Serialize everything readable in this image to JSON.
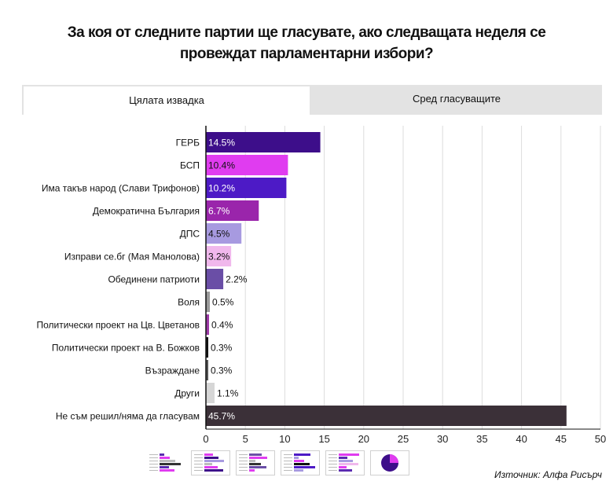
{
  "title": "За коя от следните партии ще гласувате, ако следващата неделя се провеждат парламентарни избори?",
  "tabs": [
    {
      "label": "Цялата извадка",
      "active": true
    },
    {
      "label": "Сред гласуващите",
      "active": false
    }
  ],
  "chart_data": {
    "type": "bar",
    "orientation": "horizontal",
    "categories": [
      "ГЕРБ",
      "БСП",
      "Има такъв народ (Слави Трифонов)",
      "Демократична България",
      "ДПС",
      "Изправи се.бг (Мая Манолова)",
      "Обединени патриоти",
      "Воля",
      "Политически проект на Цв. Цветанов",
      "Политически проект на В. Божков",
      "Възраждане",
      "Други",
      "Не съм решил/няма да гласувам"
    ],
    "values": [
      14.5,
      10.4,
      10.2,
      6.7,
      4.5,
      3.2,
      2.2,
      0.5,
      0.4,
      0.3,
      0.3,
      1.1,
      45.7
    ],
    "value_labels": [
      "14.5%",
      "10.4%",
      "10.2%",
      "6.7%",
      "4.5%",
      "3.2%",
      "2.2%",
      "0.5%",
      "0.4%",
      "0.3%",
      "0.3%",
      "1.1%",
      "45.7%"
    ],
    "colors": [
      "#3d0e8a",
      "#e03cf0",
      "#4d1ac6",
      "#9a25ab",
      "#a79ae0",
      "#f0b8ec",
      "#6a4ea6",
      "#9a9a9a",
      "#9c3aa6",
      "#111111",
      "#555555",
      "#d6d6d6",
      "#3b3038"
    ],
    "label_colors": [
      "#ffffff",
      "#111111",
      "#ffffff",
      "#ffffff",
      "#111111",
      "#111111",
      "#111111",
      "#111111",
      "#111111",
      "#111111",
      "#111111",
      "#111111",
      "#ffffff"
    ],
    "xlim": [
      0,
      50
    ],
    "xticks": [
      0,
      5,
      10,
      15,
      20,
      25,
      30,
      35,
      40,
      45,
      50
    ],
    "grid": true
  },
  "thumbnails": [
    {
      "name": "thumb-1",
      "colors": [
        "#5a2bb0",
        "#e03cf0",
        "#bbbbbb",
        "#333333"
      ]
    },
    {
      "name": "thumb-2",
      "colors": [
        "#e03cf0",
        "#3d0e8a",
        "#a79ae0",
        "#bbbbbb"
      ]
    },
    {
      "name": "thumb-3",
      "colors": [
        "#6a4ea6",
        "#e03cf0",
        "#bbbbbb",
        "#333333"
      ]
    },
    {
      "name": "thumb-4",
      "colors": [
        "#4d1ac6",
        "#a79ae0",
        "#e03cf0",
        "#111111"
      ]
    },
    {
      "name": "thumb-5",
      "colors": [
        "#e03cf0",
        "#5a2bb0",
        "#a79ae0",
        "#f0b8ec"
      ]
    },
    {
      "name": "thumb-6",
      "colors": [
        "#3d0e8a",
        "#a79ae0",
        "#e03cf0",
        "#f0b8ec"
      ]
    }
  ],
  "source": "Източник: Алфа Рисърч"
}
